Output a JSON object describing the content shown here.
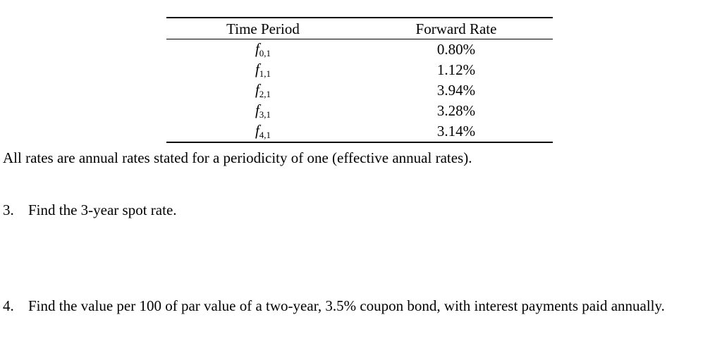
{
  "table": {
    "headers": [
      "Time Period",
      "Forward Rate"
    ],
    "rows": [
      {
        "symbol": "f",
        "subscript": "0,1",
        "rate": "0.80%"
      },
      {
        "symbol": "f",
        "subscript": "1,1",
        "rate": "1.12%"
      },
      {
        "symbol": "f",
        "subscript": "2,1",
        "rate": "3.94%"
      },
      {
        "symbol": "f",
        "subscript": "3,1",
        "rate": "3.28%"
      },
      {
        "symbol": "f",
        "subscript": "4,1",
        "rate": "3.14%"
      }
    ]
  },
  "note": "All rates are annual rates stated for a periodicity of one (effective annual rates).",
  "questions": [
    {
      "number": "3.",
      "text": "Find the 3-year spot rate."
    },
    {
      "number": "4.",
      "text": "Find the value per 100 of par value of a two-year, 3.5% coupon bond, with interest payments paid annually."
    }
  ]
}
